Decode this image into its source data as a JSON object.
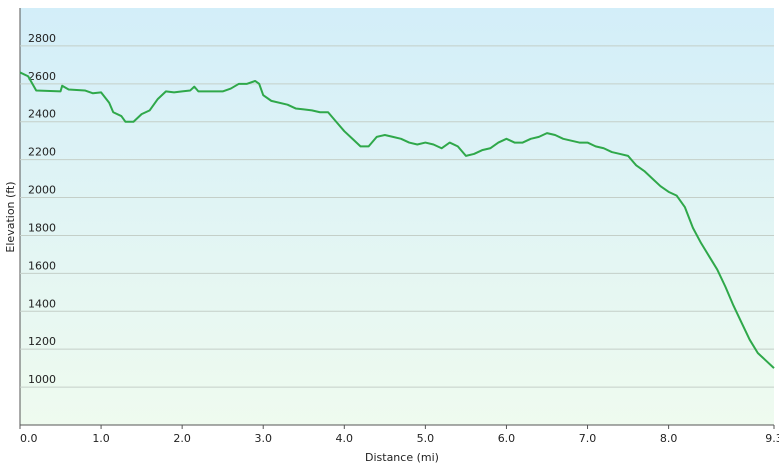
{
  "chart_data": {
    "type": "line",
    "xlabel": "Distance  (mi)",
    "ylabel": "Elevation (ft)",
    "xlim": [
      0,
      9.3
    ],
    "ylim": [
      800,
      3000
    ],
    "xticks": [
      {
        "value": 0,
        "label": "0.0"
      },
      {
        "value": 1,
        "label": "1.0"
      },
      {
        "value": 2,
        "label": "2.0"
      },
      {
        "value": 3,
        "label": "3.0"
      },
      {
        "value": 4,
        "label": "4.0"
      },
      {
        "value": 5,
        "label": "5.0"
      },
      {
        "value": 6,
        "label": "6.0"
      },
      {
        "value": 7,
        "label": "7.0"
      },
      {
        "value": 8,
        "label": "8.0"
      },
      9.3
    ],
    "yticks": [
      1000,
      1200,
      1400,
      1600,
      1800,
      2000,
      2200,
      2400,
      2600,
      2800
    ],
    "grid": true,
    "x": [
      0,
      0.1,
      0.2,
      0.5,
      0.52,
      0.6,
      0.8,
      0.9,
      1.0,
      1.1,
      1.15,
      1.25,
      1.3,
      1.4,
      1.5,
      1.6,
      1.7,
      1.8,
      1.9,
      2.0,
      2.1,
      2.15,
      2.2,
      2.5,
      2.6,
      2.7,
      2.8,
      2.9,
      2.95,
      3.0,
      3.1,
      3.3,
      3.4,
      3.5,
      3.6,
      3.7,
      3.8,
      3.9,
      4.0,
      4.1,
      4.2,
      4.3,
      4.4,
      4.5,
      4.6,
      4.7,
      4.8,
      4.9,
      5.0,
      5.1,
      5.2,
      5.3,
      5.4,
      5.5,
      5.6,
      5.7,
      5.8,
      5.9,
      6.0,
      6.1,
      6.2,
      6.3,
      6.4,
      6.5,
      6.6,
      6.7,
      6.8,
      6.9,
      7.0,
      7.1,
      7.2,
      7.3,
      7.4,
      7.5,
      7.6,
      7.7,
      7.8,
      7.9,
      8.0,
      8.1,
      8.2,
      8.3,
      8.4,
      8.5,
      8.6,
      8.7,
      8.8,
      8.9,
      9.0,
      9.1,
      9.2,
      9.3
    ],
    "series": [
      {
        "color": "#2fa84a",
        "values": [
          2660,
          2640,
          2565,
          2560,
          2590,
          2570,
          2565,
          2550,
          2555,
          2500,
          2450,
          2430,
          2400,
          2400,
          2440,
          2460,
          2520,
          2560,
          2555,
          2560,
          2565,
          2585,
          2560,
          2560,
          2575,
          2600,
          2600,
          2615,
          2600,
          2540,
          2510,
          2490,
          2470,
          2465,
          2460,
          2450,
          2450,
          2400,
          2350,
          2310,
          2270,
          2270,
          2320,
          2330,
          2320,
          2310,
          2290,
          2280,
          2290,
          2280,
          2260,
          2290,
          2270,
          2220,
          2230,
          2250,
          2260,
          2290,
          2310,
          2290,
          2290,
          2310,
          2320,
          2340,
          2330,
          2310,
          2300,
          2290,
          2290,
          2270,
          2260,
          2240,
          2230,
          2220,
          2170,
          2140,
          2100,
          2060,
          2030,
          2010,
          1950,
          1840,
          1760,
          1690,
          1620,
          1530,
          1430,
          1340,
          1250,
          1180,
          1140,
          1100
        ]
      }
    ]
  }
}
